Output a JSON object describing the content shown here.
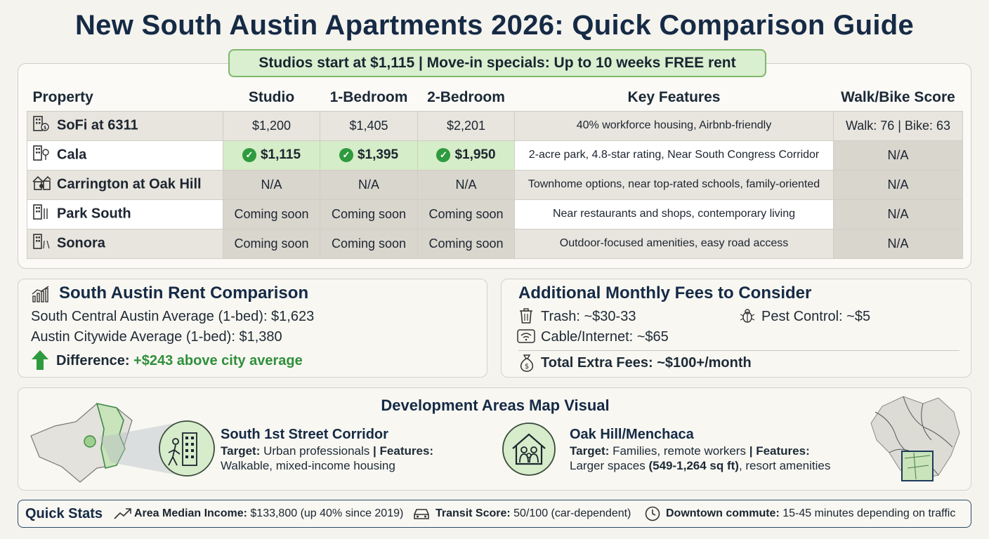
{
  "title": "New South Austin Apartments 2026: Quick Comparison Guide",
  "banner": "Studios start at $1,115  |  Move-in specials: Up to 10 weeks FREE rent",
  "table": {
    "headers": [
      "Property",
      "Studio",
      "1-Bedroom",
      "2-Bedroom",
      "Key Features",
      "Walk/Bike Score"
    ],
    "rows": [
      {
        "name": "SoFi at 6311",
        "icon": "building-dollar-icon",
        "studio": "$1,200",
        "one_bed": "$1,405",
        "two_bed": "$2,201",
        "features": "40% workforce housing, Airbnb-friendly",
        "score": "Walk: 76 | Bike: 63"
      },
      {
        "name": "Cala",
        "icon": "building-tree-icon",
        "studio": "$1,115",
        "one_bed": "$1,395",
        "two_bed": "$1,950",
        "features": "2-acre park, 4.8-star rating, Near South Congress Corridor",
        "score": "N/A"
      },
      {
        "name": "Carrington at Oak Hill",
        "icon": "townhome-icon",
        "studio": "N/A",
        "one_bed": "N/A",
        "two_bed": "N/A",
        "features": "Townhome options, near top-rated schools, family-oriented",
        "score": "N/A"
      },
      {
        "name": "Park South",
        "icon": "building-shop-icon",
        "studio": "Coming soon",
        "one_bed": "Coming soon",
        "two_bed": "Coming soon",
        "features": "Near restaurants and shops, contemporary living",
        "score": "N/A"
      },
      {
        "name": "Sonora",
        "icon": "building-road-icon",
        "studio": "Coming soon",
        "one_bed": "Coming soon",
        "two_bed": "Coming soon",
        "features": "Outdoor-focused amenities, easy road access",
        "score": "N/A"
      }
    ]
  },
  "rent": {
    "heading": "South Austin Rent Comparison",
    "line1": "South Central Austin Average (1-bed): $1,623",
    "line2": "Austin Citywide Average (1-bed): $1,380",
    "diff_label": "Difference:",
    "diff_value": "+$243 above city average"
  },
  "fees": {
    "heading": "Additional Monthly Fees to Consider",
    "trash": "Trash: ~$30-33",
    "pest": "Pest Control: ~$5",
    "cable": "Cable/Internet: ~$65",
    "total": "Total Extra Fees: ~$100+/month"
  },
  "map": {
    "heading": "Development Areas Map Visual",
    "area1": {
      "title": "South 1st Street Corridor",
      "target_label": "Target:",
      "target": "Urban professionals",
      "sep": "|",
      "features_label": "Features:",
      "features": "Walkable, mixed-income housing"
    },
    "area2": {
      "title": "Oak Hill/Menchaca",
      "target_label": "Target:",
      "target": "Families, remote workers",
      "sep": "|",
      "features_label": "Features:",
      "features_pre": "Larger spaces ",
      "features_bold": "(549-1,264 sq ft)",
      "features_post": ", resort amenities"
    }
  },
  "stats": {
    "label": "Quick Stats",
    "income_label": "Area Median Income:",
    "income": "$133,800 (up 40% since 2019)",
    "transit_label": "Transit Score:",
    "transit": "50/100 (car-dependent)",
    "commute_label": "Downtown commute:",
    "commute": "15-45 minutes depending on traffic"
  },
  "colors": {
    "navy": "#152a45",
    "green": "#2f8f3b",
    "highlight": "#d5edc8",
    "banner_border": "#7fb86b"
  }
}
